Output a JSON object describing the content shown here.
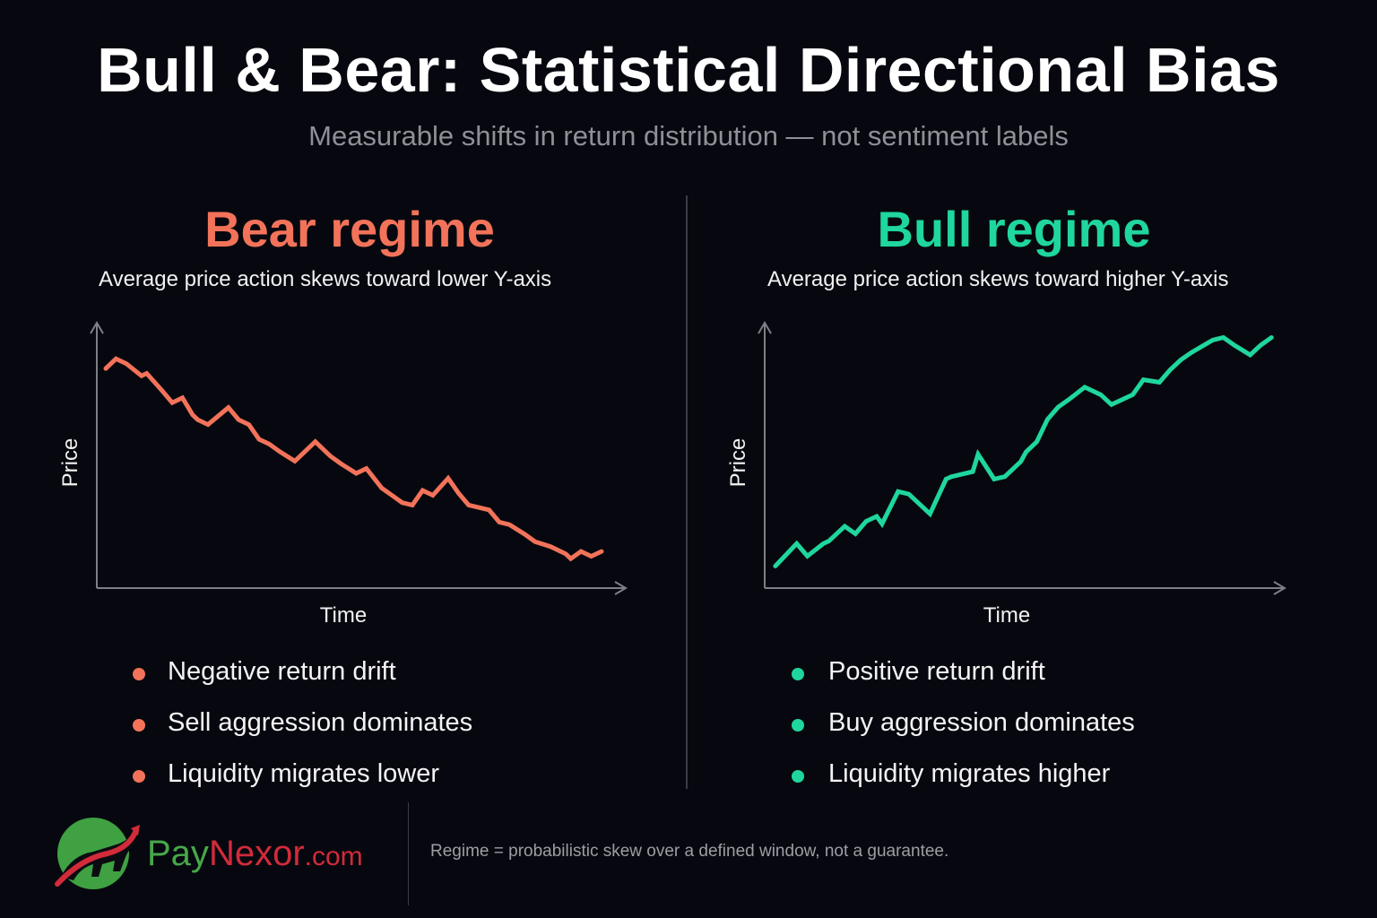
{
  "title": "Bull & Bear: Statistical Directional Bias",
  "subtitle": "Measurable shifts in return distribution — not sentiment labels",
  "colors": {
    "bear": "#f2735a",
    "bull": "#1fd69f",
    "axis": "#7d7f86",
    "background": "#07080f"
  },
  "bear": {
    "heading": "Bear regime",
    "description": "Average price action skews toward lower Y-axis",
    "bullets": [
      "Negative return drift",
      "Sell aggression dominates",
      "Liquidity migrates lower"
    ]
  },
  "bull": {
    "heading": "Bull regime",
    "description": "Average price action skews toward higher Y-axis",
    "bullets": [
      "Positive return drift",
      "Buy aggression dominates",
      "Liquidity migrates higher"
    ]
  },
  "chart_data": [
    {
      "type": "line",
      "xlabel": "Time",
      "ylabel": "Price",
      "xlim": [
        0,
        100
      ],
      "ylim": [
        0,
        100
      ],
      "grid": false,
      "series": [
        {
          "x": [
            0,
            2,
            4,
            7,
            8,
            11,
            13,
            15,
            17,
            18,
            20,
            24,
            26,
            28,
            30,
            32,
            34,
            37,
            41,
            44,
            46,
            49,
            51,
            54,
            56,
            58,
            60,
            62,
            64,
            67,
            69,
            71,
            75,
            77,
            79,
            82,
            84,
            87,
            90,
            91,
            93,
            95,
            97
          ],
          "y": [
            86,
            90,
            88,
            83,
            84,
            77,
            72,
            74,
            67,
            65,
            63,
            70,
            65,
            63,
            57,
            55,
            52,
            48,
            56,
            50,
            47,
            43,
            45,
            37,
            34,
            31,
            30,
            36,
            34,
            41,
            35,
            30,
            28,
            23,
            22,
            18,
            15,
            13,
            10,
            8,
            11,
            9,
            11
          ]
        }
      ]
    },
    {
      "type": "line",
      "xlabel": "Time",
      "ylabel": "Price",
      "xlim": [
        0,
        100
      ],
      "ylim": [
        0,
        100
      ],
      "grid": false,
      "series": [
        {
          "x": [
            2,
            6,
            8,
            11,
            12,
            15,
            17,
            19,
            21,
            22,
            25,
            27,
            31,
            34,
            35,
            37,
            39,
            40,
            43,
            45,
            48,
            49,
            51,
            53,
            55,
            57,
            60,
            63,
            65,
            69,
            71,
            74,
            76,
            78,
            80,
            84,
            86,
            88,
            91,
            93,
            95
          ],
          "y": [
            6,
            15,
            10,
            15,
            16,
            22,
            19,
            24,
            26,
            23,
            36,
            35,
            27,
            41,
            42,
            43,
            44,
            51,
            41,
            42,
            48,
            52,
            56,
            65,
            70,
            73,
            78,
            75,
            71,
            75,
            81,
            80,
            85,
            89,
            92,
            97,
            98,
            95,
            91,
            95,
            98
          ]
        }
      ]
    }
  ]
}
